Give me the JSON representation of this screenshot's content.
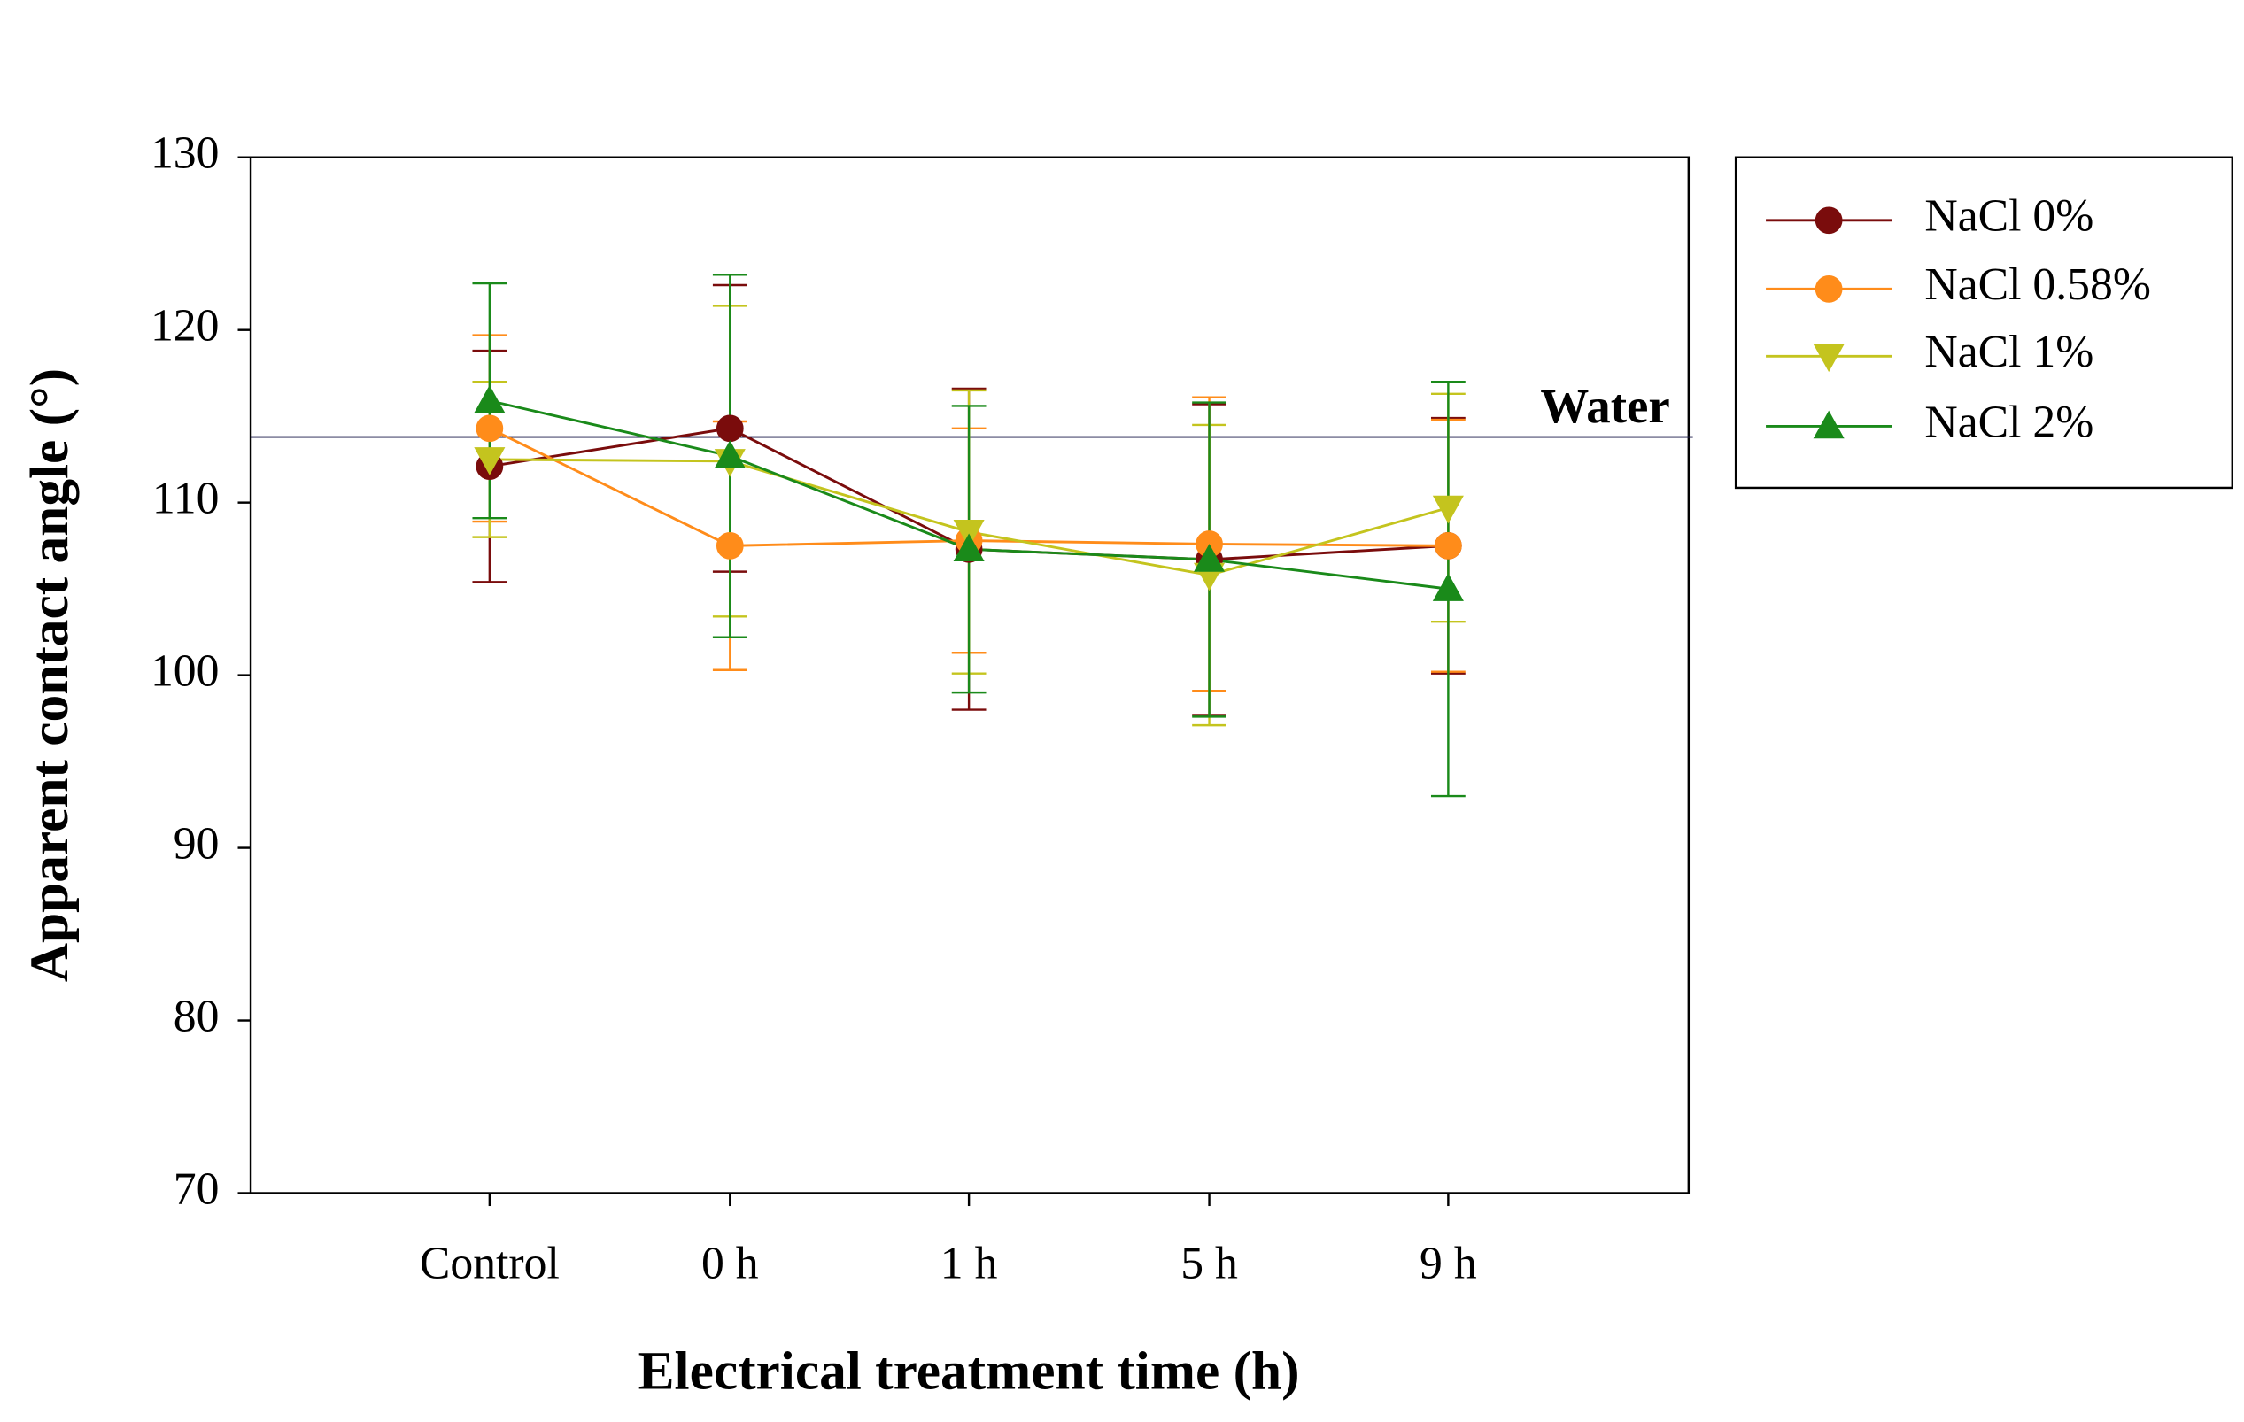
{
  "chart_data": {
    "type": "line",
    "x_label": "Electrical treatment time (h)",
    "y_label": "Apparent contact angle (°)",
    "categories": [
      "Control",
      "0 h",
      "1 h",
      "5 h",
      "9 h"
    ],
    "ylim": [
      70,
      130
    ],
    "yticks": [
      70,
      80,
      90,
      100,
      110,
      120,
      130
    ],
    "reference_line": {
      "value": 113.8,
      "label": "Water"
    },
    "legend": "outside-right",
    "series": [
      {
        "name": "NaCl 0%",
        "color": "#7a0c0c",
        "marker": "circle",
        "values": [
          112.1,
          114.3,
          107.3,
          106.7,
          107.5
        ],
        "errors": [
          6.7,
          8.3,
          9.3,
          9.0,
          7.4
        ]
      },
      {
        "name": "NaCl 0.58%",
        "color": "#ff8c1a",
        "marker": "circle",
        "values": [
          114.3,
          107.5,
          107.8,
          107.6,
          107.5
        ],
        "errors": [
          5.4,
          7.2,
          6.5,
          8.5,
          7.3
        ]
      },
      {
        "name": "NaCl 1%",
        "color": "#c4c41e",
        "marker": "triangle-down",
        "values": [
          112.5,
          112.4,
          108.3,
          105.8,
          109.7
        ],
        "errors": [
          4.5,
          9.0,
          8.2,
          8.7,
          6.6
        ]
      },
      {
        "name": "NaCl 2%",
        "color": "#1a8a1a",
        "marker": "triangle-up",
        "values": [
          115.9,
          112.7,
          107.3,
          106.7,
          105.0
        ],
        "errors": [
          6.8,
          10.5,
          8.3,
          9.1,
          12.0
        ]
      }
    ]
  }
}
